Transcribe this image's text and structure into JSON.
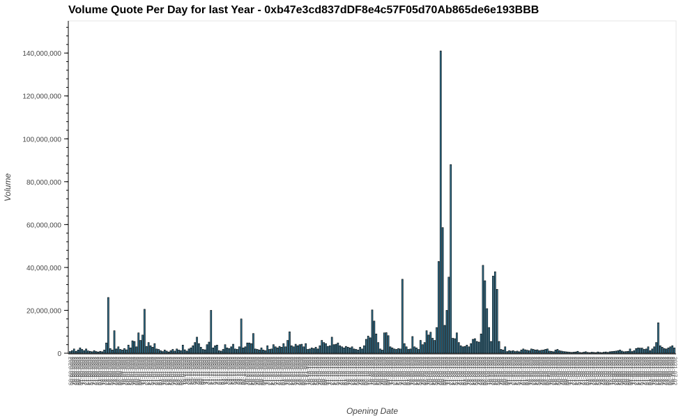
{
  "chart_data": {
    "type": "bar",
    "title": "Volume Quote Per Day for last Year - 0xb47e3cd837dDF8e4c57F05d70Ab865de6e193BBB",
    "xlabel": "Opening Date",
    "ylabel": "Volume",
    "ylim": [
      0,
      155000000
    ],
    "yticks": [
      0,
      20000000,
      40000000,
      60000000,
      80000000,
      100000000,
      120000000,
      140000000
    ],
    "ytick_labels": [
      "0",
      "20,000,000",
      "40,000,000",
      "60,000,000",
      "80,000,000",
      "100,000,000",
      "120,000,000",
      "140,000,000"
    ],
    "bar_color": "#30718e",
    "bar_edge_color": "#000000",
    "grid": false,
    "legend": "none",
    "x_start": "2020-09-05",
    "values": [
      800000,
      1200000,
      2000000,
      900000,
      1500000,
      2500000,
      1800000,
      1200000,
      2000000,
      1100000,
      900000,
      700000,
      1200000,
      800000,
      600000,
      900000,
      700000,
      1500000,
      4800000,
      26000000,
      2200000,
      1500000,
      10500000,
      2000000,
      3000000,
      1800000,
      1500000,
      2200000,
      1600000,
      3800000,
      2500000,
      5800000,
      5500000,
      3000000,
      9500000,
      6000000,
      8500000,
      20500000,
      3200000,
      5000000,
      3500000,
      2800000,
      4500000,
      2000000,
      1800000,
      1200000,
      800000,
      1500000,
      1000000,
      600000,
      1200000,
      1800000,
      1000000,
      2000000,
      1500000,
      1200000,
      3800000,
      1600000,
      1000000,
      2000000,
      2500000,
      3500000,
      5000000,
      7500000,
      4500000,
      2800000,
      1800000,
      1600000,
      4000000,
      5200000,
      20000000,
      2500000,
      3500000,
      3800000,
      1200000,
      1000000,
      1800000,
      4000000,
      2500000,
      2200000,
      3000000,
      4200000,
      2000000,
      1800000,
      3000000,
      16000000,
      2500000,
      3000000,
      4800000,
      4800000,
      4500000,
      9200000,
      2000000,
      1800000,
      1500000,
      2500000,
      1500000,
      1200000,
      3500000,
      1800000,
      2000000,
      4000000,
      3000000,
      2500000,
      3200000,
      2800000,
      4500000,
      3000000,
      6000000,
      10000000,
      3500000,
      3000000,
      4200000,
      3500000,
      4000000,
      4200000,
      3000000,
      4500000,
      1800000,
      2000000,
      2500000,
      2200000,
      2800000,
      2000000,
      3500000,
      6000000,
      5000000,
      4500000,
      3200000,
      3500000,
      7500000,
      4000000,
      4200000,
      4800000,
      3500000,
      3000000,
      2500000,
      3200000,
      2800000,
      2500000,
      3000000,
      2000000,
      1800000,
      1500000,
      2800000,
      2000000,
      3500000,
      6500000,
      8000000,
      7200000,
      20200000,
      15000000,
      9000000,
      5000000,
      2000000,
      1500000,
      9500000,
      9600000,
      8200000,
      3000000,
      2500000,
      2000000,
      1800000,
      2200000,
      2000000,
      34500000,
      4500000,
      3000000,
      1800000,
      2000000,
      7800000,
      3000000,
      2500000,
      1800000,
      6000000,
      4000000,
      5000000,
      10500000,
      8500000,
      9800000,
      7000000,
      6000000,
      12000000,
      42800000,
      141000000,
      58600000,
      13000000,
      20000000,
      35500000,
      88000000,
      7000000,
      6800000,
      9500000,
      5000000,
      3500000,
      3000000,
      3200000,
      3800000,
      3000000,
      4500000,
      6500000,
      6800000,
      5500000,
      5200000,
      9000000,
      41000000,
      33800000,
      20800000,
      12000000,
      5500000,
      36000000,
      38000000,
      29800000,
      5500000,
      1800000,
      1500000,
      3000000,
      800000,
      1200000,
      1000000,
      1200000,
      800000,
      1000000,
      700000,
      1500000,
      2000000,
      1600000,
      1400000,
      1200000,
      2000000,
      1800000,
      1500000,
      1600000,
      1200000,
      1400000,
      1500000,
      1800000,
      2000000,
      1000000,
      900000,
      700000,
      1500000,
      1800000,
      1200000,
      1000000,
      800000,
      700000,
      600000,
      500000,
      400000,
      500000,
      600000,
      900000,
      400000,
      300000,
      500000,
      700000,
      400000,
      300000,
      500000,
      400000,
      300000,
      600000,
      400000,
      300000,
      500000,
      600000,
      400000,
      700000,
      800000,
      900000,
      1000000,
      1200000,
      1500000,
      1000000,
      700000,
      800000,
      900000,
      2000000,
      800000,
      1200000,
      2200000,
      2500000,
      2400000,
      2400000,
      1800000,
      2000000,
      3000000,
      1200000,
      2000000,
      3000000,
      5000000,
      14200000,
      3500000,
      2800000,
      2200000,
      2000000,
      2500000,
      3000000,
      3500000,
      2500000
    ]
  }
}
